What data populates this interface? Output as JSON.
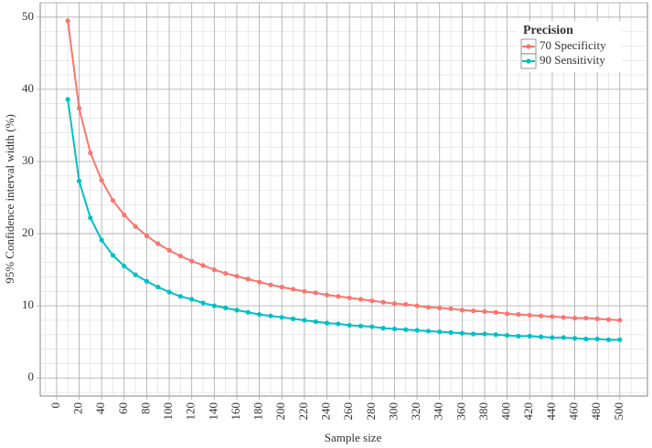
{
  "chart_data": {
    "type": "line",
    "x_label": "Sample size",
    "y_label": "95% Confidence interval width (%)",
    "legend_title": "Precision",
    "legend_position": "top-right",
    "x": [
      10,
      20,
      30,
      40,
      50,
      60,
      70,
      80,
      90,
      100,
      110,
      120,
      130,
      140,
      150,
      160,
      170,
      180,
      190,
      200,
      210,
      220,
      230,
      240,
      250,
      260,
      270,
      280,
      290,
      300,
      310,
      320,
      330,
      340,
      350,
      360,
      370,
      380,
      390,
      400,
      410,
      420,
      430,
      440,
      450,
      460,
      470,
      480,
      490,
      500
    ],
    "series": [
      {
        "name": "70 Specificity",
        "color": "#F8766D",
        "values": [
          49.5,
          37.4,
          31.2,
          27.4,
          24.6,
          22.6,
          21.0,
          19.7,
          18.6,
          17.7,
          16.9,
          16.2,
          15.6,
          15.0,
          14.5,
          14.1,
          13.7,
          13.3,
          12.9,
          12.6,
          12.3,
          12.0,
          11.8,
          11.5,
          11.3,
          11.1,
          10.9,
          10.7,
          10.5,
          10.3,
          10.2,
          10.0,
          9.8,
          9.7,
          9.6,
          9.4,
          9.3,
          9.2,
          9.1,
          8.9,
          8.8,
          8.7,
          8.6,
          8.5,
          8.4,
          8.3,
          8.3,
          8.2,
          8.1,
          8.0
        ]
      },
      {
        "name": "90 Sensitivity",
        "color": "#00BFC4",
        "values": [
          38.6,
          27.3,
          22.2,
          19.1,
          17.0,
          15.5,
          14.3,
          13.4,
          12.6,
          11.9,
          11.3,
          10.9,
          10.4,
          10.0,
          9.7,
          9.4,
          9.1,
          8.8,
          8.6,
          8.4,
          8.2,
          8.0,
          7.8,
          7.6,
          7.5,
          7.3,
          7.2,
          7.1,
          6.9,
          6.8,
          6.7,
          6.6,
          6.5,
          6.4,
          6.3,
          6.2,
          6.1,
          6.1,
          6.0,
          5.9,
          5.8,
          5.8,
          5.7,
          5.6,
          5.6,
          5.5,
          5.4,
          5.4,
          5.3,
          5.3
        ]
      }
    ],
    "xlim": [
      -14.5,
      524.5
    ],
    "ylim": [
      -2.5,
      52
    ],
    "xticks": [
      0,
      20,
      40,
      60,
      80,
      100,
      120,
      140,
      160,
      180,
      200,
      220,
      240,
      260,
      280,
      300,
      320,
      340,
      360,
      380,
      400,
      420,
      440,
      460,
      480,
      500
    ],
    "yticks": [
      0,
      10,
      20,
      30,
      40,
      50
    ],
    "minor_xticks": [
      -10,
      10,
      30,
      50,
      70,
      90,
      110,
      130,
      150,
      170,
      190,
      210,
      230,
      250,
      270,
      290,
      310,
      330,
      350,
      370,
      390,
      410,
      430,
      450,
      470,
      490,
      510
    ],
    "minor_yticks": [
      -2,
      2,
      4,
      6,
      8,
      12,
      14,
      16,
      18,
      22,
      24,
      26,
      28,
      32,
      34,
      36,
      38,
      42,
      44,
      46,
      48,
      52
    ],
    "grid": true
  }
}
